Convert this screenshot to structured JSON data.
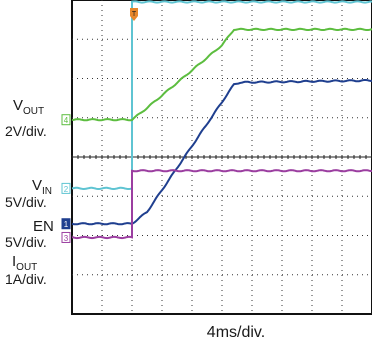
{
  "chart_data": {
    "type": "line",
    "title": "",
    "xlabel": "4ms/div.",
    "x_divisions": 10,
    "y_divisions": 8,
    "grid": true,
    "trigger_marker": "T",
    "series": [
      {
        "name": "VOUT",
        "label_main": "V",
        "label_sub": "OUT",
        "scale": "2V/div.",
        "channel": "1",
        "color": "#1f3f8f",
        "x_div": [
          0,
          2.0,
          2.5,
          5.4,
          5.6,
          10
        ],
        "y_div": [
          5.7,
          5.7,
          5.4,
          2.15,
          2.1,
          2.05
        ]
      },
      {
        "name": "VIN",
        "label_main": "V",
        "label_sub": "IN",
        "scale": "5V/div.",
        "channel": "2",
        "color": "#5fc4d2",
        "x_div": [
          0,
          2.0,
          2.0,
          10
        ],
        "y_div": [
          4.8,
          4.8,
          0.05,
          0.05
        ]
      },
      {
        "name": "EN",
        "label_main": "EN",
        "label_sub": "",
        "scale": "5V/div.",
        "channel": "3",
        "color": "#9b3ea0",
        "x_div": [
          0,
          2.0,
          2.0,
          10
        ],
        "y_div": [
          6.05,
          6.05,
          4.35,
          4.35
        ]
      },
      {
        "name": "IOUT",
        "label_main": "I",
        "label_sub": "OUT",
        "scale": "1A/div.",
        "channel": "4",
        "color": "#5cbd3f",
        "x_div": [
          0,
          2.0,
          2.5,
          5.0,
          5.4,
          10
        ],
        "y_div": [
          3.05,
          3.05,
          2.75,
          1.15,
          0.75,
          0.75
        ]
      }
    ]
  }
}
